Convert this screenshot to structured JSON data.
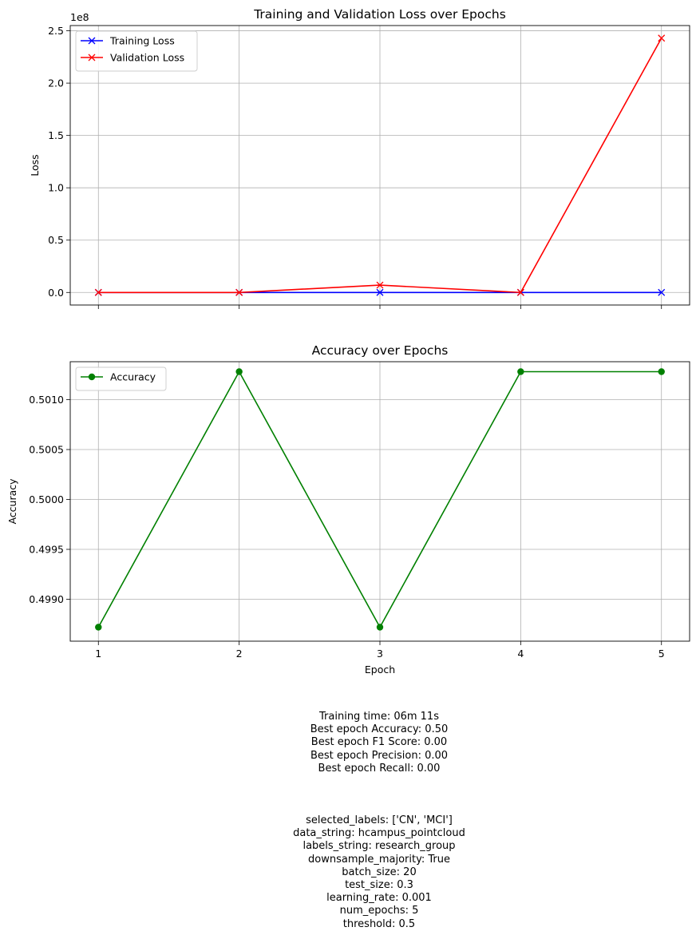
{
  "colors": {
    "training": "#0000ff",
    "validation": "#ff0000",
    "accuracy": "#008000",
    "grid": "#b0b0b0"
  },
  "chart_data": [
    {
      "type": "line",
      "title": "Training and Validation Loss over Epochs",
      "xlabel": "",
      "ylabel": "Loss",
      "y_scale_label": "1e8",
      "x": [
        1,
        2,
        3,
        4,
        5
      ],
      "x_ticks": [
        "",
        "",
        "",
        "",
        ""
      ],
      "y_ticks": [
        0.0,
        0.5,
        1.0,
        1.5,
        2.0,
        2.5
      ],
      "y_tick_labels": [
        "0.0",
        "0.5",
        "1.0",
        "1.5",
        "2.0",
        "2.5"
      ],
      "xlim": [
        0.8,
        5.2
      ],
      "ylim": [
        -0.12,
        2.55
      ],
      "grid": true,
      "legend": "upper-left",
      "series": [
        {
          "name": "Training Loss",
          "marker": "x",
          "color": "#0000ff",
          "values": [
            0.0,
            0.0,
            0.0,
            0.0,
            0.0
          ]
        },
        {
          "name": "Validation Loss",
          "marker": "x",
          "color": "#ff0000",
          "values": [
            0.0,
            0.0,
            0.07,
            0.0,
            2.43
          ]
        }
      ]
    },
    {
      "type": "line",
      "title": "Accuracy over Epochs",
      "xlabel": "Epoch",
      "ylabel": "Accuracy",
      "x": [
        1,
        2,
        3,
        4,
        5
      ],
      "x_ticks": [
        "1",
        "2",
        "3",
        "4",
        "5"
      ],
      "y_ticks": [
        0.499,
        0.4995,
        0.5,
        0.5005,
        0.501
      ],
      "y_tick_labels": [
        "0.4990",
        "0.4995",
        "0.5000",
        "0.5005",
        "0.5010"
      ],
      "xlim": [
        0.8,
        5.2
      ],
      "ylim": [
        0.49858,
        0.50138
      ],
      "grid": true,
      "legend": "upper-left",
      "series": [
        {
          "name": "Accuracy",
          "marker": "o",
          "color": "#008000",
          "values": [
            0.49872,
            0.50128,
            0.49872,
            0.50128,
            0.50128
          ]
        }
      ]
    }
  ],
  "summary": {
    "lines": [
      "Training time: 06m 11s",
      "Best epoch Accuracy: 0.50",
      "Best epoch F1 Score: 0.00",
      "Best epoch Precision: 0.00",
      "Best epoch Recall: 0.00"
    ]
  },
  "params": {
    "lines": [
      "selected_labels: ['CN', 'MCI']",
      "data_string: hcampus_pointcloud",
      "labels_string: research_group",
      "downsample_majority: True",
      "batch_size: 20",
      "test_size: 0.3",
      "learning_rate: 0.001",
      "num_epochs: 5",
      "threshold: 0.5"
    ]
  }
}
